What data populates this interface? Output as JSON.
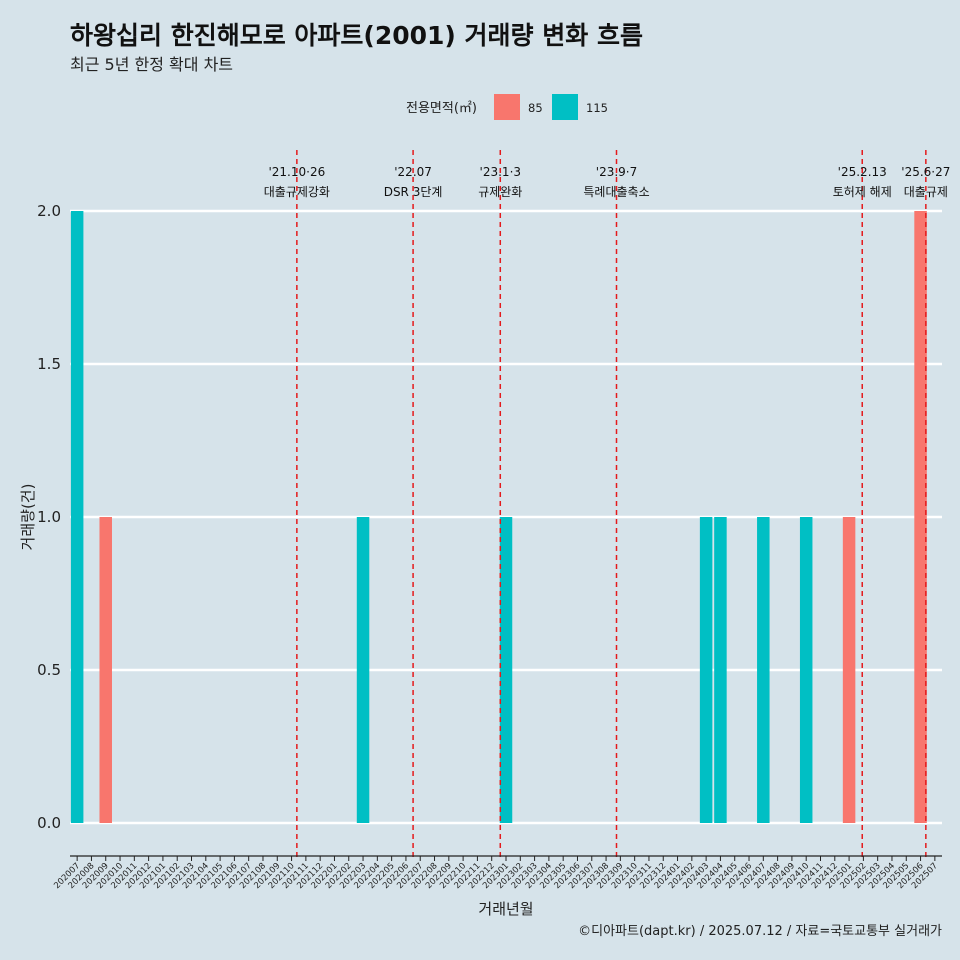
{
  "title": "하왕십리 한진해모로 아파트(2001) 거래량 변화 흐름",
  "subtitle": "최근 5년 한정 확대 차트",
  "caption": "©디아파트(dapt.kr) / 2025.07.12 / 자료=국토교통부 실거래가",
  "legend": {
    "title": "전용면적(㎡)",
    "position": "top",
    "items": [
      {
        "label": "85",
        "color": "#f8766d"
      },
      {
        "label": "115",
        "color": "#00bfc4"
      }
    ]
  },
  "chart_data": {
    "type": "bar",
    "xlabel": "거래년월",
    "ylabel": "거래량(건)",
    "ylim": [
      0,
      2
    ],
    "yticks": [
      "0.0",
      "0.5",
      "1.0",
      "1.5",
      "2.0"
    ],
    "grid": "horizontal",
    "categories": [
      "202007",
      "202008",
      "202009",
      "202010",
      "202011",
      "202012",
      "202101",
      "202102",
      "202103",
      "202104",
      "202105",
      "202106",
      "202107",
      "202108",
      "202109",
      "202110",
      "202111",
      "202112",
      "202201",
      "202202",
      "202203",
      "202204",
      "202205",
      "202206",
      "202207",
      "202208",
      "202209",
      "202210",
      "202211",
      "202212",
      "202301",
      "202302",
      "202303",
      "202304",
      "202305",
      "202306",
      "202307",
      "202308",
      "202309",
      "202310",
      "202311",
      "202312",
      "202401",
      "202402",
      "202403",
      "202404",
      "202405",
      "202406",
      "202407",
      "202408",
      "202409",
      "202410",
      "202411",
      "202412",
      "202501",
      "202502",
      "202503",
      "202504",
      "202505",
      "202506",
      "202507"
    ],
    "series": [
      {
        "name": "85",
        "color": "#f8766d",
        "points": [
          {
            "x": "202009",
            "y": 1
          },
          {
            "x": "202501",
            "y": 1
          },
          {
            "x": "202506",
            "y": 2
          }
        ]
      },
      {
        "name": "115",
        "color": "#00bfc4",
        "points": [
          {
            "x": "202007",
            "y": 2
          },
          {
            "x": "202203",
            "y": 1
          },
          {
            "x": "202301",
            "y": 1
          },
          {
            "x": "202403",
            "y": 1
          },
          {
            "x": "202404",
            "y": 1
          },
          {
            "x": "202407",
            "y": 1
          },
          {
            "x": "202410",
            "y": 1
          }
        ]
      }
    ],
    "annotations": [
      {
        "date": "'21.10·26",
        "label": "대출규제강화",
        "x": "202110",
        "pos": 0.87,
        "color": "#e41a1c"
      },
      {
        "date": "'22.07",
        "label": "DSR 3단계",
        "x": "202207",
        "pos": 0,
        "color": "#e41a1c"
      },
      {
        "date": "'23.1·3",
        "label": "규제완화",
        "x": "202301",
        "pos": 0.1,
        "color": "#e41a1c"
      },
      {
        "date": "'23.9·7",
        "label": "특례대출축소",
        "x": "202309",
        "pos": 0.23,
        "color": "#e41a1c"
      },
      {
        "date": "'25.2.13",
        "label": "토허제 해제",
        "x": "202502",
        "pos": 0.42,
        "color": "#e41a1c"
      },
      {
        "date": "'25.6·27",
        "label": "대출규제",
        "x": "202506",
        "pos": 0.87,
        "color": "#e41a1c"
      }
    ]
  }
}
